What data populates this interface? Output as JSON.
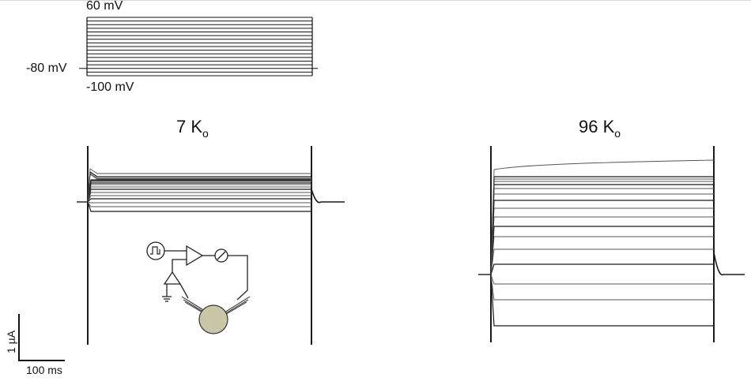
{
  "protocol": {
    "label_top": "60 mV",
    "label_hold": "-80 mV",
    "label_bottom": "-100 mV"
  },
  "scale_bar": {
    "current_label": "1 µA",
    "time_label": "100 ms"
  },
  "chart_data": [
    {
      "type": "line",
      "title": "7 K",
      "title_subscript": "o",
      "series_count": 17,
      "trace_shape": "small outward currents with clustered steady-state levels; upper traces show a small early transient",
      "clamp_steps_mV": [
        -100,
        -90,
        -80,
        -70,
        -60,
        -50,
        -40,
        -30,
        -20,
        -10,
        0,
        10,
        20,
        30,
        40,
        50,
        60
      ]
    },
    {
      "type": "line",
      "title": "96 K",
      "title_subscript": "o",
      "series_count": 17,
      "trace_shape": "large inward currents at hyperpolarized steps with evenly spaced levels; top trace slowly activating",
      "clamp_steps_mV": [
        -100,
        -90,
        -80,
        -70,
        -60,
        -50,
        -40,
        -30,
        -20,
        -10,
        0,
        10,
        20,
        30,
        40,
        50,
        60
      ]
    }
  ],
  "colors": {
    "trace_dark": "#1a1a1a",
    "trace_light": "#555555",
    "cell_fill": "#c9c7a8"
  },
  "icons": [
    "pulse-generator-icon",
    "amplifier-icon",
    "meter-icon",
    "ground-icon",
    "oocyte-cell-icon"
  ]
}
